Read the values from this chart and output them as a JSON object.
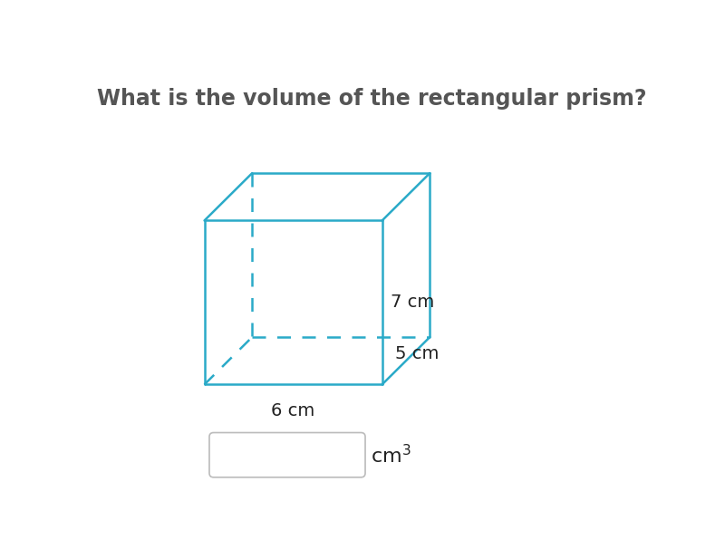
{
  "title": "What is the volume of the rectangular prism?",
  "title_fontsize": 17,
  "title_color": "#555555",
  "background_color": "#ffffff",
  "box_color": "#2aaac8",
  "label_7cm": "7 cm",
  "label_5cm": "5 cm",
  "label_6cm": "6 cm",
  "label_fontsize": 14,
  "label_color": "#222222",
  "cm3_fontsize": 16,
  "cm3_color": "#222222"
}
